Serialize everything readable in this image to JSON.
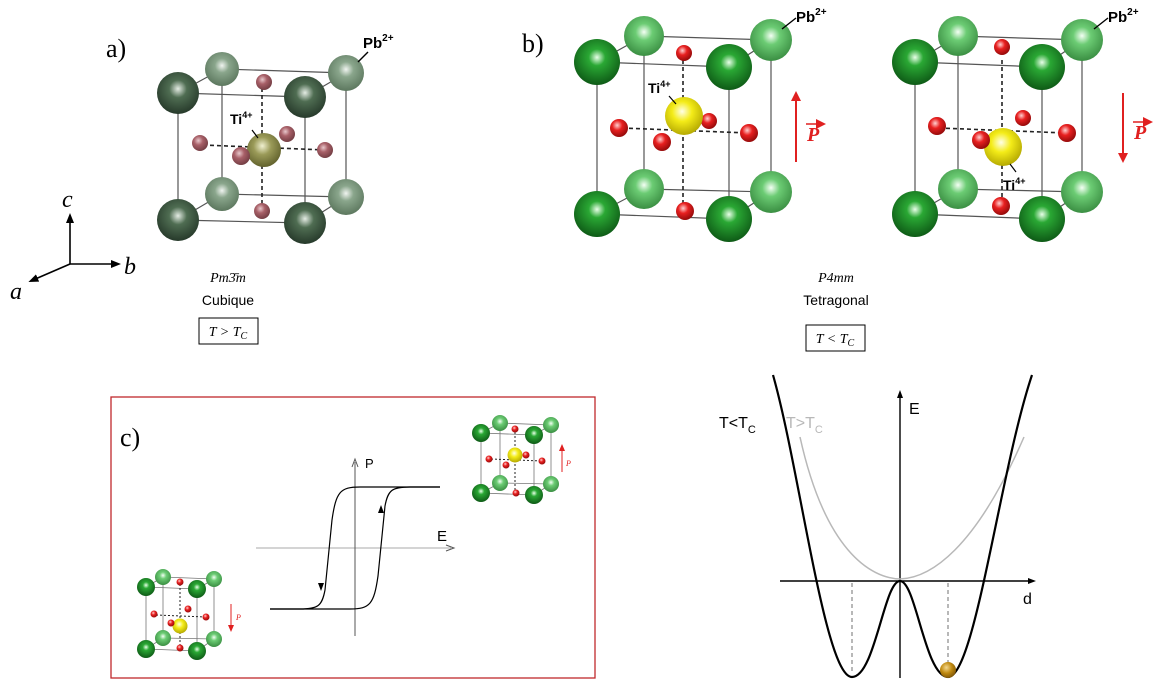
{
  "panels": {
    "a": {
      "label": "a)",
      "ion_pb": "Pb",
      "ion_pb_charge": "2+",
      "ion_ti": "Ti",
      "ion_ti_charge": "4+",
      "space_group": "Pm3̄m",
      "phase": "Cubique",
      "condition": "T > T",
      "condition_sub": "C"
    },
    "b": {
      "label": "b)",
      "ion_pb": "Pb",
      "ion_pb_charge": "2+",
      "ion_ti": "Ti",
      "ion_ti_charge": "4+",
      "polarization": "P",
      "space_group": "P4mm",
      "phase": "Tetragonal",
      "condition": "T < T",
      "condition_sub": "C"
    },
    "c": {
      "label": "c)",
      "axis_y": "P",
      "axis_x": "E",
      "polarization": "P"
    },
    "d": {
      "axis_y": "E",
      "axis_x": "d",
      "curve_low": "T<T",
      "curve_low_sub": "C",
      "curve_high": "T>T",
      "curve_high_sub": "C"
    }
  },
  "axes": {
    "a": "a",
    "b": "b",
    "c": "c"
  },
  "colors": {
    "pb_cubic": "#3f5b42",
    "pb_cubic_back": "#7f9a82",
    "o_cubic": "#a05c64",
    "ti_cubic": "#8a8a4c",
    "pb": "#1f8c2a",
    "pb_back": "#5fbd66",
    "o": "#e01818",
    "ti": "#e8e010",
    "arrow": "#e02020",
    "frame": "#c0282c",
    "curve_high": "#b8b8b8",
    "ball": "#c08a10"
  }
}
